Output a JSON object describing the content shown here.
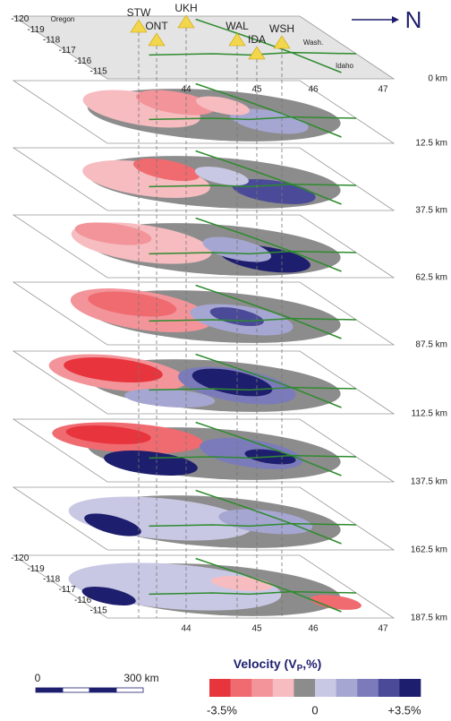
{
  "north_label": "N",
  "stations": [
    "STW",
    "UKH",
    "ONT",
    "WAL",
    "IDA",
    "WSH"
  ],
  "regions": [
    "Oregon",
    "Wash.",
    "Idaho"
  ],
  "depths": [
    "0 km",
    "12.5 km",
    "37.5 km",
    "62.5 km",
    "87.5 km",
    "112.5 km",
    "137.5 km",
    "162.5 km",
    "187.5 km"
  ],
  "top_lon_ticks": [
    "-120",
    "-119",
    "-118",
    "-117",
    "-116",
    "-115"
  ],
  "top_lat_ticks": [
    "44",
    "45",
    "46",
    "47"
  ],
  "bottom_lon_ticks": [
    "-120",
    "-119",
    "-118",
    "-117",
    "-116",
    "-115"
  ],
  "bottom_lat_ticks": [
    "44",
    "45",
    "46",
    "47"
  ],
  "colorbar": {
    "title": "Velocity (V",
    "title_sub": "P",
    "title_end": ",%)",
    "labels": [
      "-3.5%",
      "0",
      "+3.5%"
    ],
    "colors": [
      "#e8343c",
      "#ef6b70",
      "#f29499",
      "#f6bcc0",
      "#8c8c8c",
      "#c8c8e4",
      "#a6a6d2",
      "#7b7bbb",
      "#4a4a99",
      "#1e1e6e"
    ]
  },
  "scale_bar": {
    "start": "0",
    "end": "300 km"
  }
}
